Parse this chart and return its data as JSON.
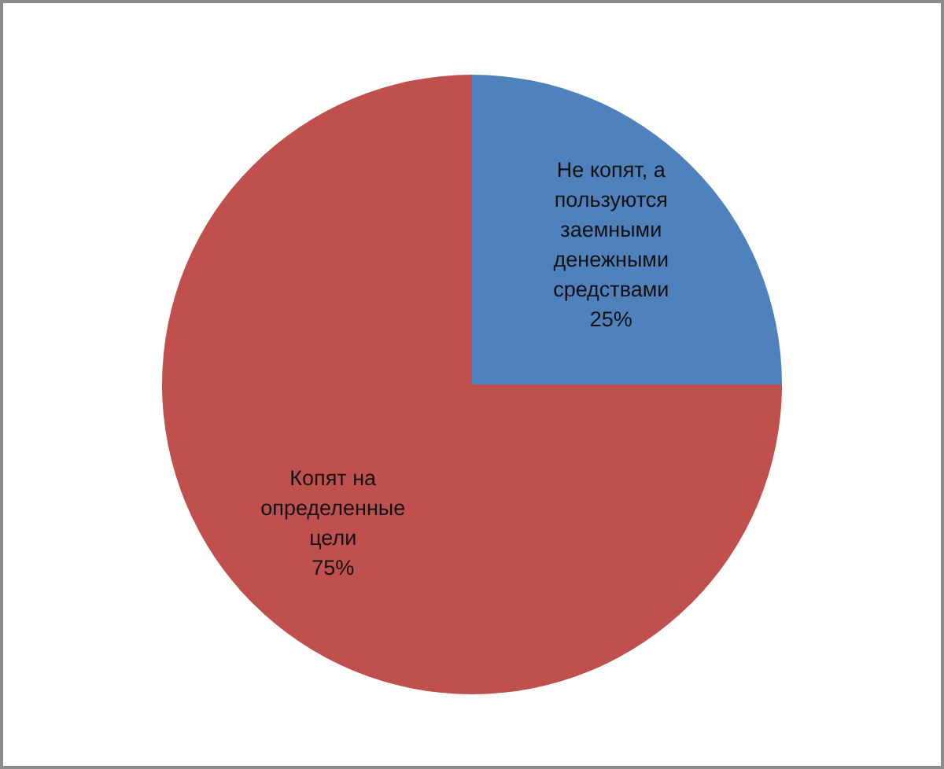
{
  "chart_data": {
    "type": "pie",
    "categories": [
      "Не копят, а пользуются заемными денежными средствами",
      "Копят на определенные цели"
    ],
    "values": [
      25,
      75
    ],
    "colors": [
      "#4f81bd",
      "#c0504d"
    ],
    "value_labels": [
      "25%",
      "75%"
    ]
  }
}
